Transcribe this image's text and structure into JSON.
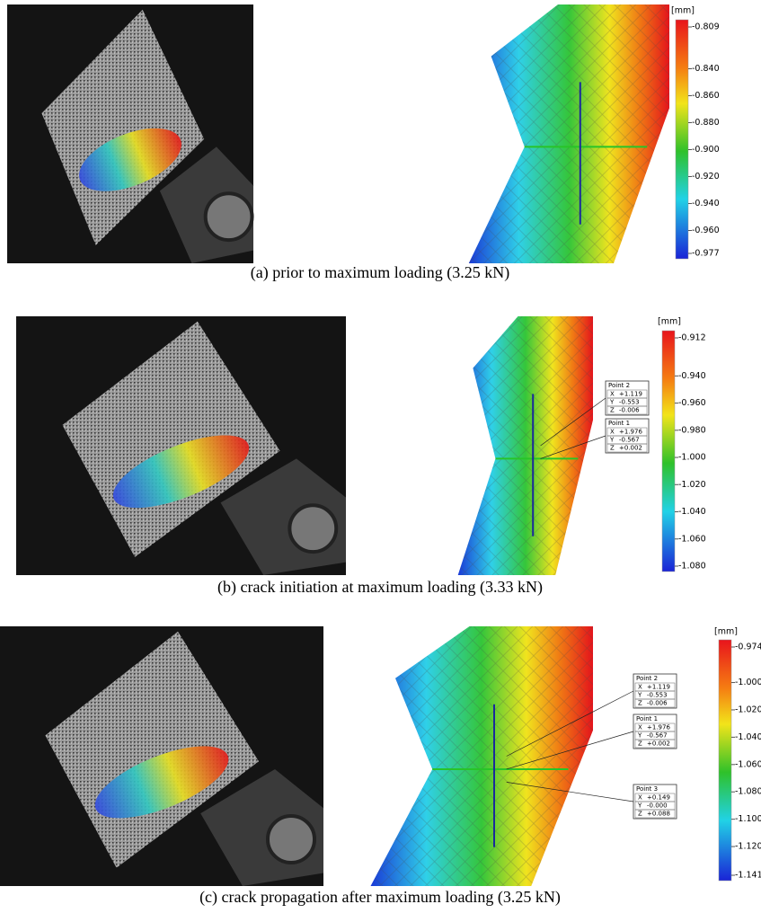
{
  "panels": [
    {
      "caption": "(a) prior to maximum loading (3.25 kN)",
      "colorbar": {
        "unit": "[mm]",
        "ticks": [
          "-0.809",
          "-0.840",
          "-0.860",
          "-0.880",
          "-0.900",
          "-0.920",
          "-0.940",
          "-0.960",
          "-0.977"
        ]
      },
      "points": []
    },
    {
      "caption": "(b) crack initiation at maximum loading (3.33 kN)",
      "colorbar": {
        "unit": "[mm]",
        "ticks": [
          "-0.912",
          "-0.940",
          "-0.960",
          "-0.980",
          "-1.000",
          "-1.020",
          "-1.040",
          "-1.060",
          "-1.080"
        ]
      },
      "points": [
        {
          "label": "Point 2",
          "rows": [
            [
              "X",
              "+1.119"
            ],
            [
              "Y",
              "-0.553"
            ],
            [
              "Z",
              "-0.006"
            ]
          ]
        },
        {
          "label": "Point 1",
          "rows": [
            [
              "X",
              "+1.976"
            ],
            [
              "Y",
              "-0.567"
            ],
            [
              "Z",
              "+0.002"
            ]
          ]
        }
      ]
    },
    {
      "caption": "(c) crack propagation after maximum loading (3.25 kN)",
      "colorbar": {
        "unit": "[mm]",
        "ticks": [
          "-0.974",
          "-1.000",
          "-1.020",
          "-1.040",
          "-1.060",
          "-1.080",
          "-1.100",
          "-1.120",
          "-1.141"
        ]
      },
      "points": [
        {
          "label": "Point 2",
          "rows": [
            [
              "X",
              "+1.119"
            ],
            [
              "Y",
              "-0.553"
            ],
            [
              "Z",
              "-0.006"
            ]
          ]
        },
        {
          "label": "Point 1",
          "rows": [
            [
              "X",
              "+1.976"
            ],
            [
              "Y",
              "-0.567"
            ],
            [
              "Z",
              "+0.002"
            ]
          ]
        },
        {
          "label": "Point 3",
          "rows": [
            [
              "X",
              "+0.149"
            ],
            [
              "Y",
              "-0.000"
            ],
            [
              "Z",
              "+0.088"
            ]
          ]
        }
      ]
    }
  ]
}
